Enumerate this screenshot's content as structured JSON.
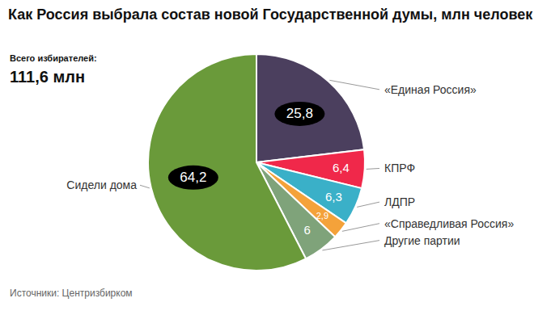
{
  "chart_data": {
    "type": "pie",
    "title": "Как Россия выбрала состав новой Государственной думы, млн человек",
    "subtitle": "Всего избирателей:",
    "total_label": "111,6 млн",
    "source": "Источники: Центризбирком",
    "categories": [
      "«Единая Россия»",
      "КПРФ",
      "ЛДПР",
      "«Справедливая Россия»",
      "Другие партии",
      "Сидели дома"
    ],
    "values": [
      25.8,
      6.4,
      6.3,
      2.9,
      6,
      64.2
    ],
    "value_labels": [
      "25,8",
      "6,4",
      "6,3",
      "2,9",
      "6",
      "64,2"
    ],
    "colors": [
      "#4b3f5e",
      "#f0284a",
      "#3ab0c8",
      "#f4a23a",
      "#7fa37a",
      "#6a9a3a"
    ],
    "data_labels": true
  }
}
